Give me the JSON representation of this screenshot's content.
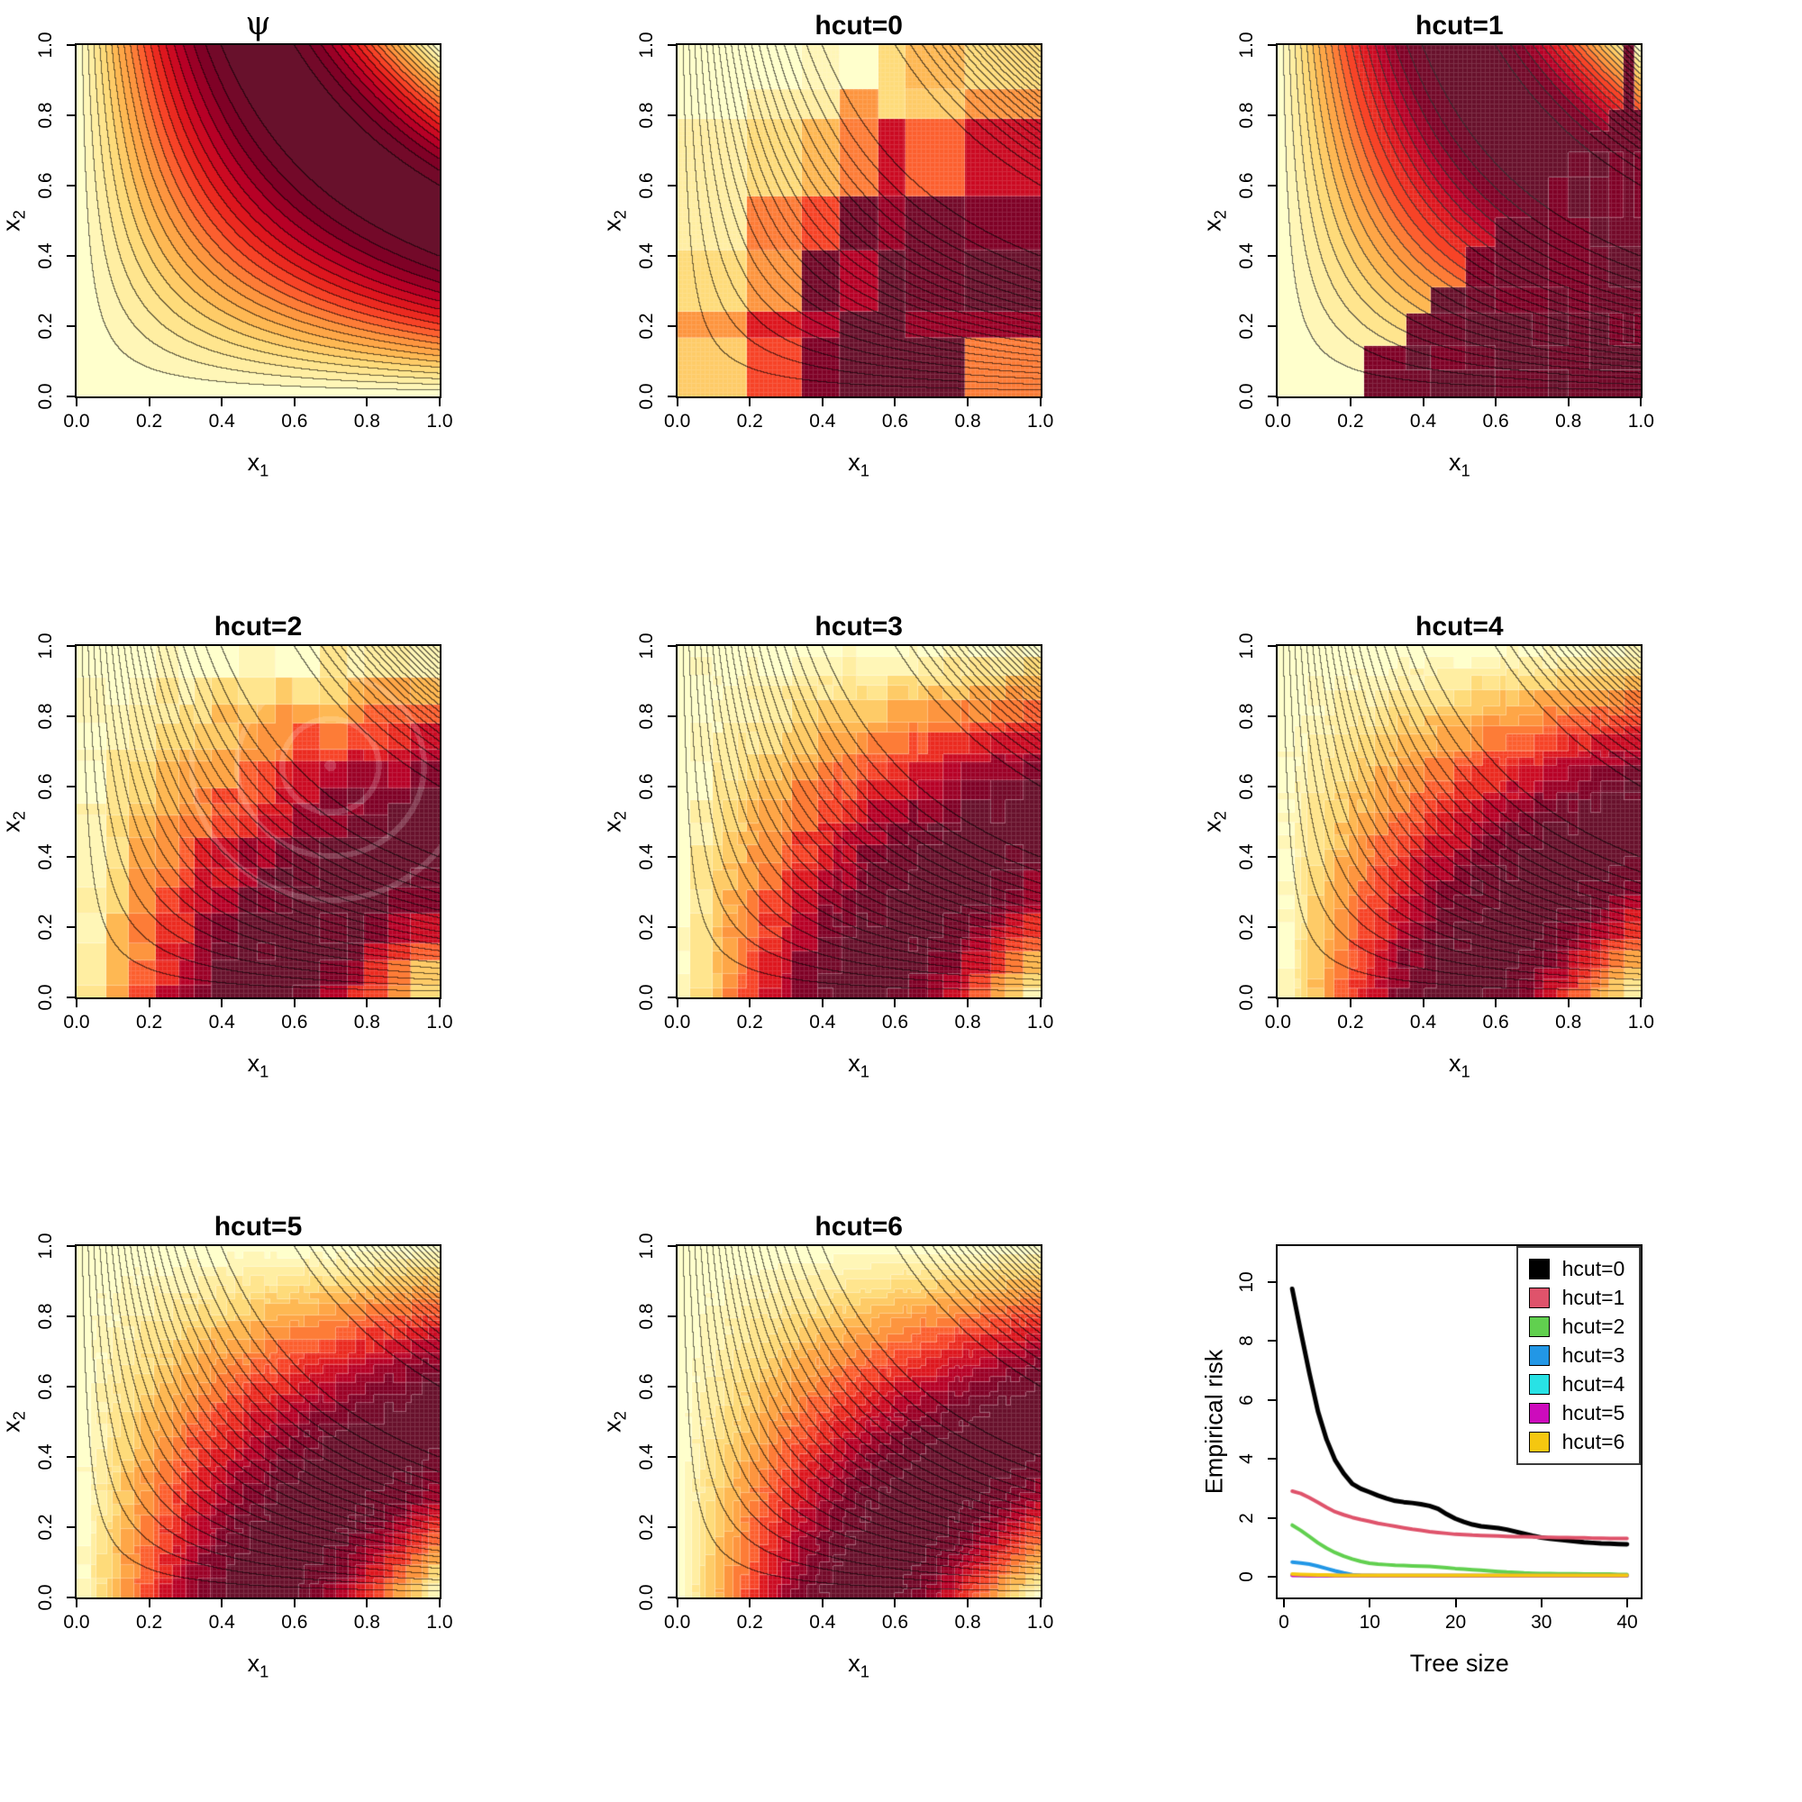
{
  "figure": {
    "background": "#ffffff",
    "rows": 3,
    "cols": 3
  },
  "contour_common": {
    "xlabel_base": "x",
    "xlabel_sub": "1",
    "ylabel_base": "x",
    "ylabel_sub": "2",
    "ticks": [
      "0.0",
      "0.2",
      "0.4",
      "0.6",
      "0.8",
      "1.0"
    ],
    "xlim": [
      0,
      1
    ],
    "ylim": [
      0,
      1
    ],
    "true_function": "psi(x1,x2) = sin(pi * x1 * x2)",
    "filled_levels": 20,
    "contour_line_levels": 20,
    "palette_stops": [
      "#FFFFCC",
      "#FFEDA0",
      "#FED976",
      "#FEB24C",
      "#FD8D3C",
      "#FC4E2A",
      "#E31A1C",
      "#BD0026",
      "#800026",
      "#68112C"
    ],
    "contour_line_color": "#000000"
  },
  "chart_data": [
    {
      "id": "psi",
      "type": "heatmap",
      "title": "ψ",
      "kind": "true",
      "description": "true function psi, filled contour, yellow (low) to dark maroon (high), max on hyperbola x1*x2=0.5"
    },
    {
      "id": "hcut0",
      "type": "heatmap",
      "title": "hcut=0",
      "kind": "tree",
      "hcut": 0,
      "description": "coarse piecewise-constant rectangular tree approximation with mesh overlay"
    },
    {
      "id": "hcut1",
      "type": "heatmap",
      "title": "hcut=1",
      "kind": "tree",
      "hcut": 1,
      "description": "smooth lower-left gradient, dark staircase region above diagonal x1+x2≈1.16"
    },
    {
      "id": "hcut2",
      "type": "heatmap",
      "title": "hcut=2",
      "kind": "tree",
      "hcut": 2,
      "description": "moderately smooth approximation with ring artifacts around (0.7,0.66)"
    },
    {
      "id": "hcut3",
      "type": "heatmap",
      "title": "hcut=3",
      "kind": "tree",
      "hcut": 3,
      "description": "smooth approximation, small blocky artifacts"
    },
    {
      "id": "hcut4",
      "type": "heatmap",
      "title": "hcut=4",
      "kind": "tree",
      "hcut": 4,
      "description": "smooth approximation, finer artifacts"
    },
    {
      "id": "hcut5",
      "type": "heatmap",
      "title": "hcut=5",
      "kind": "tree",
      "hcut": 5,
      "description": "very smooth approximation"
    },
    {
      "id": "hcut6",
      "type": "heatmap",
      "title": "hcut=6",
      "kind": "tree",
      "hcut": 6,
      "description": "nearly exact smooth approximation"
    },
    {
      "id": "risk",
      "type": "line",
      "title": "",
      "xlabel": "Tree size",
      "ylabel": "Empirical risk",
      "xtick_labels": [
        "0",
        "10",
        "20",
        "30",
        "40"
      ],
      "xtick_values": [
        0,
        10,
        20,
        30,
        40
      ],
      "ytick_labels": [
        "0",
        "2",
        "4",
        "6",
        "8",
        "10"
      ],
      "ytick_values": [
        0,
        2,
        4,
        6,
        8,
        10
      ],
      "xlim": [
        -0.7,
        41.6
      ],
      "ylim": [
        -0.7,
        11.2
      ],
      "legend_position": "topright",
      "tree_sizes": [
        1,
        2,
        3,
        4,
        5,
        6,
        7,
        8,
        9,
        10,
        11,
        12,
        13,
        14,
        15,
        16,
        17,
        18,
        19,
        20,
        21,
        22,
        23,
        24,
        25,
        26,
        27,
        28,
        29,
        30,
        31,
        32,
        33,
        34,
        35,
        36,
        37,
        38,
        39,
        40
      ],
      "series": [
        {
          "name": "hcut=0",
          "color": "#000000",
          "linewidth": 5,
          "values": [
            9.75,
            8.3,
            6.9,
            5.6,
            4.65,
            3.95,
            3.5,
            3.15,
            2.98,
            2.87,
            2.75,
            2.65,
            2.57,
            2.53,
            2.5,
            2.46,
            2.4,
            2.3,
            2.12,
            1.97,
            1.86,
            1.77,
            1.71,
            1.68,
            1.65,
            1.6,
            1.53,
            1.46,
            1.39,
            1.33,
            1.29,
            1.26,
            1.23,
            1.2,
            1.17,
            1.15,
            1.13,
            1.12,
            1.11,
            1.1
          ]
        },
        {
          "name": "hcut=1",
          "color": "#DF536B",
          "linewidth": 4,
          "values": [
            2.9,
            2.82,
            2.68,
            2.52,
            2.35,
            2.2,
            2.1,
            2.01,
            1.94,
            1.88,
            1.81,
            1.76,
            1.71,
            1.66,
            1.61,
            1.57,
            1.53,
            1.5,
            1.47,
            1.44,
            1.43,
            1.41,
            1.4,
            1.39,
            1.38,
            1.37,
            1.36,
            1.36,
            1.35,
            1.34,
            1.34,
            1.33,
            1.33,
            1.32,
            1.32,
            1.31,
            1.31,
            1.3,
            1.3,
            1.3
          ]
        },
        {
          "name": "hcut=2",
          "color": "#61D04F",
          "linewidth": 4,
          "values": [
            1.75,
            1.57,
            1.36,
            1.15,
            0.97,
            0.82,
            0.7,
            0.6,
            0.52,
            0.46,
            0.43,
            0.41,
            0.39,
            0.38,
            0.37,
            0.36,
            0.35,
            0.33,
            0.31,
            0.28,
            0.26,
            0.24,
            0.22,
            0.2,
            0.18,
            0.16,
            0.15,
            0.13,
            0.12,
            0.11,
            0.11,
            0.1,
            0.1,
            0.1,
            0.09,
            0.09,
            0.09,
            0.09,
            0.08,
            0.08
          ]
        },
        {
          "name": "hcut=3",
          "color": "#2297E6",
          "linewidth": 4,
          "values": [
            0.5,
            0.47,
            0.43,
            0.36,
            0.28,
            0.2,
            0.13,
            0.07,
            0.05,
            0.04,
            0.03,
            0.03,
            0.03,
            0.03,
            0.03,
            0.03,
            0.03,
            0.03,
            0.03,
            0.03,
            0.03,
            0.03,
            0.03,
            0.03,
            0.03,
            0.03,
            0.03,
            0.03,
            0.03,
            0.03,
            0.03,
            0.03,
            0.03,
            0.03,
            0.03,
            0.03,
            0.03,
            0.03,
            0.03,
            0.03
          ]
        },
        {
          "name": "hcut=4",
          "color": "#28E2E5",
          "linewidth": 4,
          "values": [
            0.06,
            0.05,
            0.05,
            0.05,
            0.04,
            0.04,
            0.04,
            0.04,
            0.04,
            0.04,
            0.04,
            0.04,
            0.04,
            0.04,
            0.04,
            0.04,
            0.04,
            0.04,
            0.04,
            0.04,
            0.04,
            0.04,
            0.04,
            0.04,
            0.04,
            0.04,
            0.04,
            0.04,
            0.04,
            0.04,
            0.04,
            0.04,
            0.04,
            0.04,
            0.04,
            0.04,
            0.04,
            0.04,
            0.04,
            0.04
          ]
        },
        {
          "name": "hcut=5",
          "color": "#CD0BBC",
          "linewidth": 4,
          "values": [
            0.05,
            0.05,
            0.04,
            0.04,
            0.04,
            0.04,
            0.04,
            0.04,
            0.04,
            0.04,
            0.04,
            0.04,
            0.04,
            0.04,
            0.04,
            0.04,
            0.04,
            0.04,
            0.04,
            0.04,
            0.04,
            0.04,
            0.04,
            0.04,
            0.04,
            0.04,
            0.04,
            0.04,
            0.04,
            0.04,
            0.04,
            0.04,
            0.04,
            0.04,
            0.04,
            0.04,
            0.04,
            0.04,
            0.04,
            0.04
          ]
        },
        {
          "name": "hcut=6",
          "color": "#F5C710",
          "linewidth": 4,
          "values": [
            0.09,
            0.08,
            0.07,
            0.06,
            0.06,
            0.05,
            0.05,
            0.05,
            0.05,
            0.05,
            0.05,
            0.05,
            0.05,
            0.05,
            0.05,
            0.05,
            0.05,
            0.05,
            0.05,
            0.05,
            0.05,
            0.05,
            0.05,
            0.05,
            0.05,
            0.05,
            0.05,
            0.05,
            0.05,
            0.05,
            0.05,
            0.05,
            0.05,
            0.05,
            0.05,
            0.05,
            0.05,
            0.05,
            0.05,
            0.05
          ]
        }
      ]
    }
  ]
}
